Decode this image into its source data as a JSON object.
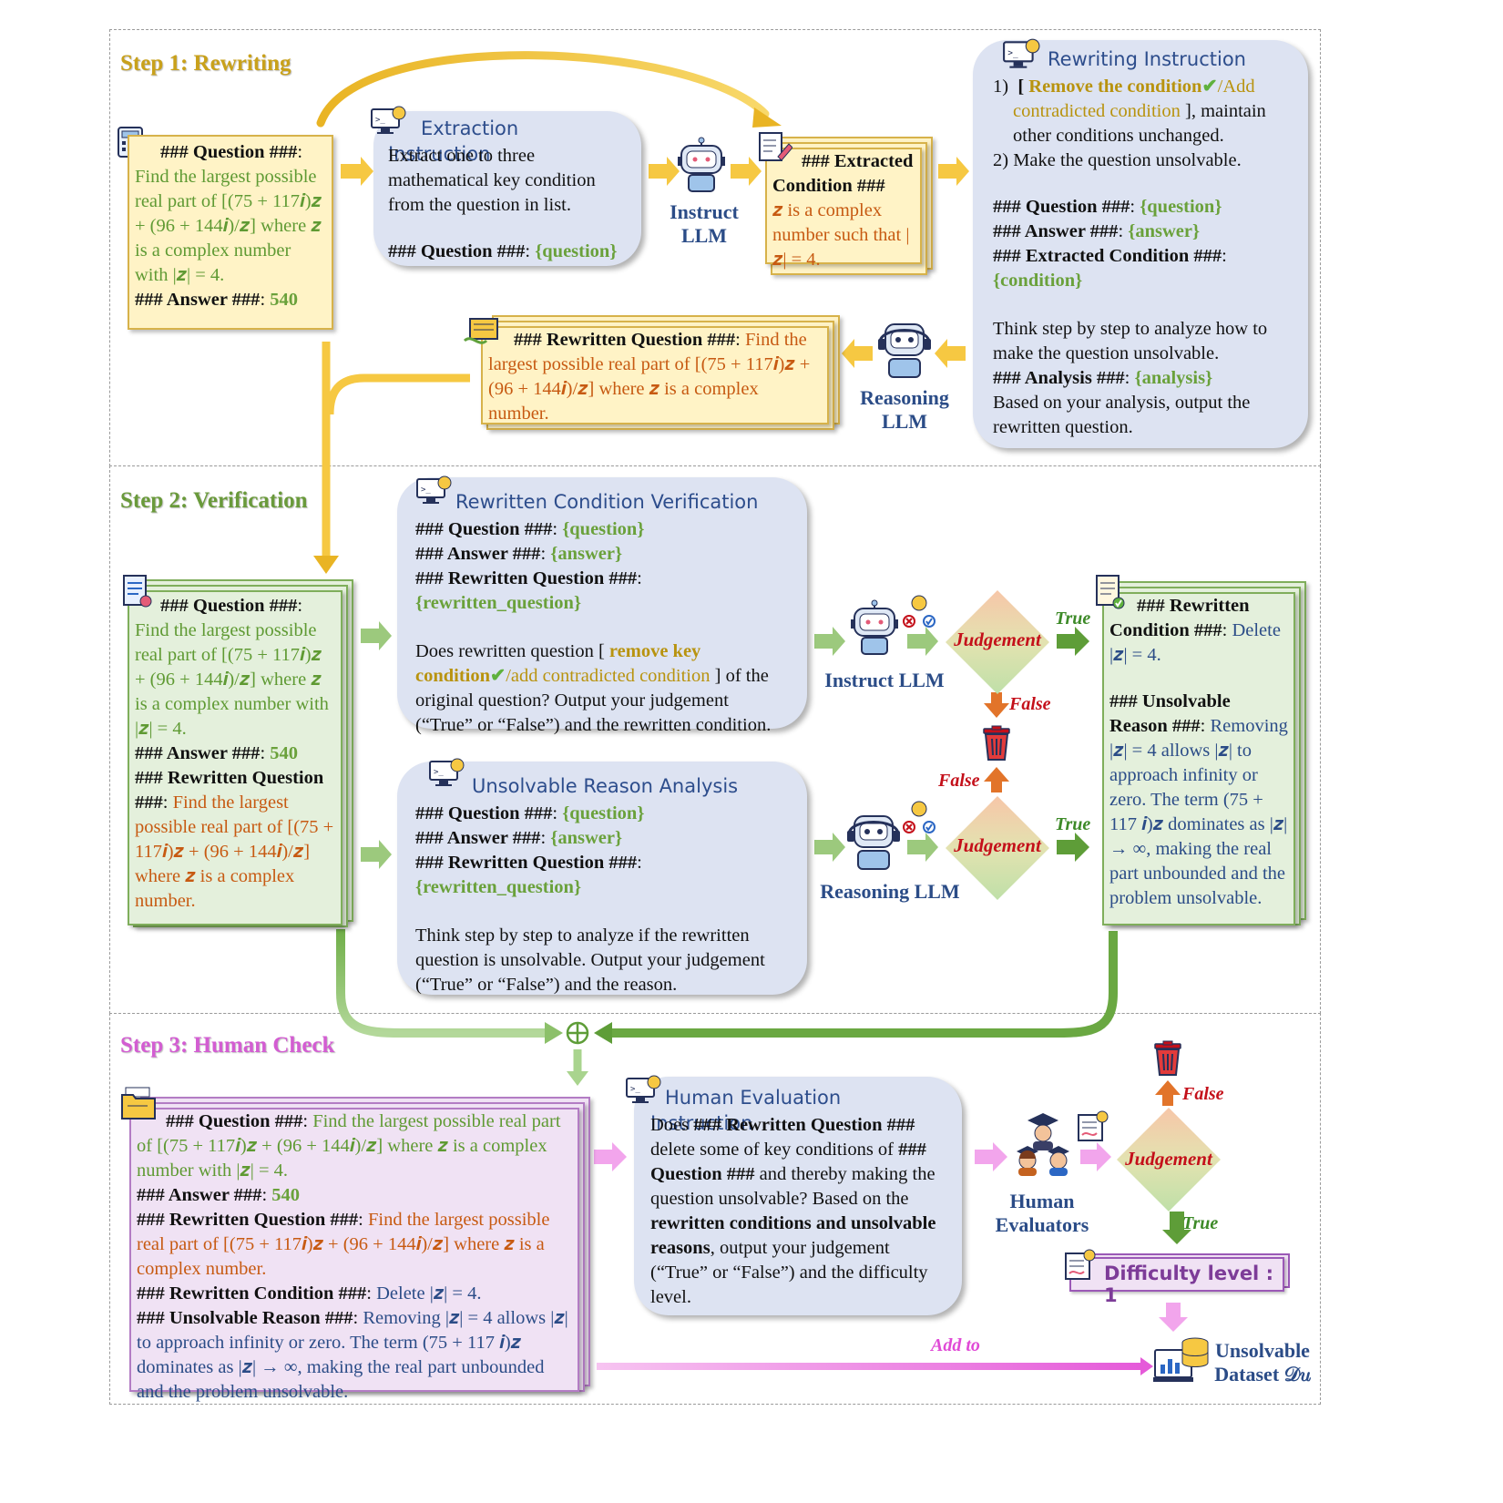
{
  "steps": {
    "step1": "Step 1: Rewriting",
    "step2": "Step 2: Verification",
    "step3": "Step 3: Human Check"
  },
  "step1": {
    "question_box": {
      "q_label": "### Question ###",
      "q_text": "Find the largest possible real part of [(75 + 117𝒊)𝒛 + (96 + 144𝒊)/𝒛] where 𝒛 is a complex number with |𝒛| = 4.",
      "a_label": "### Answer ###",
      "a_value": "540"
    },
    "extraction": {
      "title": "Extraction Instruction",
      "body": "Extract one to three mathematical key condition from the question in list.",
      "q_label": "### Question ###",
      "q_var": "{question}"
    },
    "instruct_llm": "Instruct LLM",
    "extracted": {
      "label": "### Extracted Condition ###",
      "text": "𝒛 is a complex number such that |𝒛| = 4."
    },
    "rewriting": {
      "title": "Rewriting Instruction",
      "item1_prefix": "1)",
      "item1_remove": "Remove the condition",
      "item1_add": "/Add contradicted condition",
      "item1_rest": "], maintain other conditions unchanged.",
      "item2": "2) Make the question unsolvable.",
      "q_label": "### Question ###",
      "q_var": "{question}",
      "a_label": "### Answer ###",
      "a_var": "{answer}",
      "c_label": "### Extracted Condition ###",
      "c_var": "{condition}",
      "think": "Think step by step to analyze how to make the question unsolvable.",
      "an_label": "### Analysis ###",
      "an_var": "{analysis}",
      "final": "Based on your analysis, output the rewritten question."
    },
    "reasoning_llm": "Reasoning LLM",
    "rewritten": {
      "label": "### Rewritten Question ###",
      "text": "Find the largest possible real part of [(75 + 117𝒊)𝒛 + (96 + 144𝒊)/𝒛] where 𝒛 is a complex number."
    }
  },
  "step2": {
    "question_box": {
      "q_label": "### Question ###",
      "q_text": "Find the largest possible real part of [(75 + 117𝒊)𝒛 + (96 + 144𝒊)/𝒛] where 𝒛 is a complex number with |𝒛| = 4.",
      "a_label": "### Answer ###",
      "a_value": "540",
      "rq_label": "### Rewritten Question ###",
      "rq_text": "Find the largest possible real part of [(75 + 117𝒊)𝒛 + (96 + 144𝒊)/𝒛] where 𝒛 is a complex number."
    },
    "verification": {
      "title": "Rewritten Condition Verification",
      "q_label": "### Question ###",
      "q_var": "{question}",
      "a_label": "### Answer ###",
      "a_var": "{answer}",
      "rq_label": "### Rewritten Question ###",
      "rq_var": "{rewritten_question}",
      "body_pre": "Does rewritten question [",
      "body_key": "remove key condition",
      "body_add": "/add contradicted condition",
      "body_post": "] of the original question? Output your judgement (“True” or “False”) and the rewritten condition."
    },
    "unsolvable": {
      "title": "Unsolvable Reason Analysis",
      "q_label": "### Question ###",
      "q_var": "{question}",
      "a_label": "### Answer ###",
      "a_var": "{answer}",
      "rq_label": "### Rewritten Question ###",
      "rq_var": "{rewritten_question}",
      "body": "Think step by step to analyze if the rewritten question is unsolvable. Output your judgement (“True” or “False”) and the reason."
    },
    "instruct_llm": "Instruct LLM",
    "reasoning_llm": "Reasoning LLM",
    "judgement": "Judgement",
    "true": "True",
    "false": "False",
    "result": {
      "rc_label": "### Rewritten Condition ###",
      "rc_text": "Delete |𝒛| = 4.",
      "ur_label": "### Unsolvable Reason ###",
      "ur_text": "Removing |𝒛| = 4 allows |𝒛| to approach infinity or zero. The term (75 + 117 𝒊)𝒛 dominates as |𝒛| → ∞, making the real part unbounded and the problem unsolvable."
    }
  },
  "step3": {
    "combine_symbol": "⊕",
    "summary": {
      "q_label": "### Question ###",
      "q_text": "Find the largest possible real part of [(75 + 117𝒊)𝒛 + (96 + 144𝒊)/𝒛] where 𝒛 is a complex number with |𝒛| = 4.",
      "a_label": "### Answer ###",
      "a_value": "540",
      "rq_label": "### Rewritten Question ###",
      "rq_text": "Find the largest possible real part of [(75 + 117𝒊)𝒛 + (96 + 144𝒊)/𝒛] where 𝒛 is a complex number.",
      "rc_label": "### Rewritten Condition ###",
      "rc_text": "Delete |𝒛| = 4.",
      "ur_label": "### Unsolvable Reason ###",
      "ur_text": "Removing |𝒛| = 4 allows |𝒛| to approach infinity or zero. The term (75 + 117 𝒊)𝒛 dominates as |𝒛| → ∞, making the real part unbounded and the problem unsolvable."
    },
    "human_eval": {
      "title": "Human Evaluation Instruction",
      "p1": "Does",
      "p1b": "### Rewritten Question ###",
      "p2": "delete some of key conditions of",
      "p2b": "### Question ###",
      "p3": "and thereby making the question unsolvable? Based on the",
      "p3b": "rewritten conditions and unsolvable reasons",
      "p4": ", output your judgement (“True” or “False”) and the difficulty level."
    },
    "human_evaluators": "Human Evaluators",
    "judgement": "Judgement",
    "true": "True",
    "false": "False",
    "difficulty": "Difficulty level : 1",
    "add_to": "Add to",
    "dataset": "Unsolvable Dataset 𝒟𝑢"
  },
  "colors": {
    "yellow_arrow": "#f6c842",
    "green_arrow": "#8cc06a",
    "pink_arrow": "#f08ae6",
    "red": "#c4101a",
    "orange": "#e2742a",
    "blue_text": "#2b4c87"
  }
}
